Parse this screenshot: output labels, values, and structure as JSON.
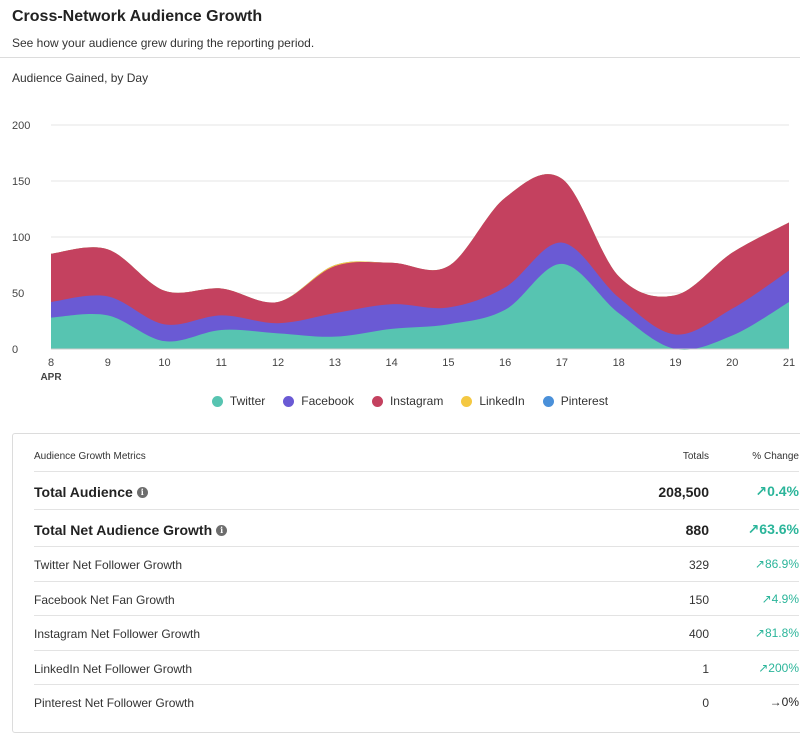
{
  "header": {
    "title": "Cross-Network Audience Growth",
    "subtitle": "See how your audience grew during the reporting period."
  },
  "chart_title": "Audience Gained, by Day",
  "chart_data": {
    "type": "area",
    "stacked": true,
    "title": "Audience Gained, by Day",
    "x": [
      "8",
      "9",
      "10",
      "11",
      "12",
      "13",
      "14",
      "15",
      "16",
      "17",
      "18",
      "19",
      "20",
      "21"
    ],
    "x_sublabel": "APR",
    "ylim": [
      0,
      200
    ],
    "yticks": [
      0,
      50,
      100,
      150,
      200
    ],
    "grid": true,
    "legend_position": "bottom",
    "series": [
      {
        "name": "Twitter",
        "color": "#57c4b1",
        "values": [
          28,
          30,
          7,
          17,
          14,
          11,
          18,
          22,
          35,
          76,
          32,
          0,
          12,
          42
        ]
      },
      {
        "name": "Facebook",
        "color": "#6a5ad4",
        "values": [
          14,
          17,
          15,
          13,
          9,
          21,
          22,
          15,
          20,
          19,
          14,
          13,
          24,
          28
        ]
      },
      {
        "name": "Instagram",
        "color": "#c4415f",
        "values": [
          43,
          42,
          30,
          24,
          19,
          42,
          37,
          37,
          80,
          57,
          19,
          35,
          50,
          43
        ]
      },
      {
        "name": "LinkedIn",
        "color": "#f4c842",
        "values": [
          0,
          0,
          0,
          0,
          0,
          1,
          0,
          0,
          0,
          0,
          0,
          0,
          0,
          0
        ]
      },
      {
        "name": "Pinterest",
        "color": "#4a90d9",
        "values": [
          0,
          0,
          0,
          0,
          0,
          0,
          0,
          0,
          0,
          0,
          0,
          0,
          0,
          0
        ]
      }
    ]
  },
  "legend": [
    {
      "name": "Twitter",
      "color": "#57c4b1"
    },
    {
      "name": "Facebook",
      "color": "#6a5ad4"
    },
    {
      "name": "Instagram",
      "color": "#c4415f"
    },
    {
      "name": "LinkedIn",
      "color": "#f4c842"
    },
    {
      "name": "Pinterest",
      "color": "#4a90d9"
    }
  ],
  "metrics": {
    "header": {
      "label": "Audience Growth Metrics",
      "totals": "Totals",
      "change": "% Change"
    },
    "rows": [
      {
        "label": "Total Audience",
        "total": "208,500",
        "change": "↗0.4%"
      },
      {
        "label": "Total Net Audience Growth",
        "total": "880",
        "change": "↗63.6%"
      },
      {
        "label": "Twitter Net Follower Growth",
        "total": "329",
        "change": "↗86.9%"
      },
      {
        "label": "Facebook Net Fan Growth",
        "total": "150",
        "change": "↗4.9%"
      },
      {
        "label": "Instagram Net Follower Growth",
        "total": "400",
        "change": "↗81.8%"
      },
      {
        "label": "LinkedIn Net Follower Growth",
        "total": "1",
        "change": "↗200%"
      },
      {
        "label": "Pinterest Net Follower Growth",
        "total": "0",
        "change": "→0%"
      }
    ]
  }
}
